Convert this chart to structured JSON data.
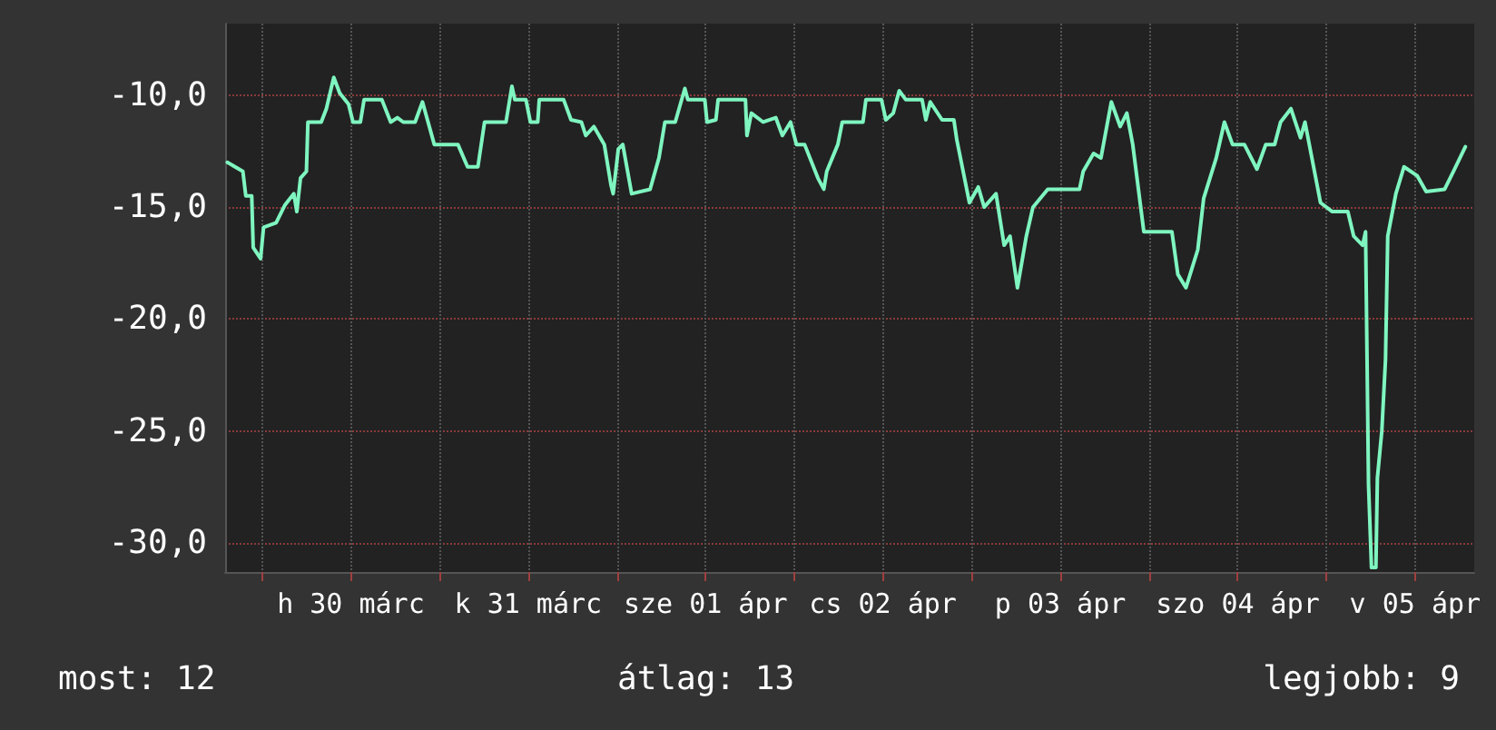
{
  "chart_data": {
    "type": "line",
    "color": "#7ff5c0",
    "marker": "none",
    "line_style": "solid",
    "grid": true,
    "xlim": [
      "--03-29T19:00",
      "--04-05T20:00"
    ],
    "ylim": [
      -31.3,
      -6.8
    ],
    "xticks": [
      {
        "value": "--03-30T00:00",
        "label": null
      },
      {
        "value": "--03-30T12:00",
        "label": "h 30 márc"
      },
      {
        "value": "--03-31T00:00",
        "label": null
      },
      {
        "value": "--03-31T12:00",
        "label": "k 31 márc"
      },
      {
        "value": "--04-01T00:00",
        "label": null
      },
      {
        "value": "--04-01T12:00",
        "label": "sze 01 ápr"
      },
      {
        "value": "--04-02T00:00",
        "label": null
      },
      {
        "value": "--04-02T12:00",
        "label": "cs 02 ápr"
      },
      {
        "value": "--04-03T00:00",
        "label": null
      },
      {
        "value": "--04-03T12:00",
        "label": "p 03 ápr"
      },
      {
        "value": "--04-04T00:00",
        "label": null
      },
      {
        "value": "--04-04T12:00",
        "label": "szo 04 ápr"
      },
      {
        "value": "--04-05T00:00",
        "label": null
      },
      {
        "value": "--04-05T12:00",
        "label": "v 05 ápr"
      }
    ],
    "yticks": [
      {
        "value": -30,
        "label": "-30,0"
      },
      {
        "value": -25,
        "label": "-25,0"
      },
      {
        "value": -20,
        "label": "-20,0"
      },
      {
        "value": -15,
        "label": "-15,0"
      },
      {
        "value": -10,
        "label": "-10,0"
      }
    ],
    "x": [
      "--03-29T19:18",
      "--03-29T21:24",
      "--03-29T21:48",
      "--03-29T22:36",
      "--03-29T22:48",
      "--03-29T23:48",
      "--03-30T00:12",
      "--03-30T01:54",
      "--03-30T03:06",
      "--03-30T04:18",
      "--03-30T04:42",
      "--03-30T05:12",
      "--03-30T06:00",
      "--03-30T06:12",
      "--03-30T08:00",
      "--03-30T08:42",
      "--03-30T09:42",
      "--03-30T10:30",
      "--03-30T11:42",
      "--03-30T12:18",
      "--03-30T13:18",
      "--03-30T13:48",
      "--03-30T16:12",
      "--03-30T17:24",
      "--03-30T18:18",
      "--03-30T19:06",
      "--03-30T20:42",
      "--03-30T21:42",
      "--03-30T23:18",
      "--03-31T02:30",
      "--03-31T03:48",
      "--03-31T05:12",
      "--03-31T06:06",
      "--03-31T09:00",
      "--03-31T09:48",
      "--03-31T10:12",
      "--03-31T11:42",
      "--03-31T12:18",
      "--03-31T13:18",
      "--03-31T13:30",
      "--03-31T16:48",
      "--03-31T17:48",
      "--03-31T19:12",
      "--03-31T19:48",
      "--03-31T20:54",
      "--03-31T22:18",
      "--03-31T23:12",
      "--03-31T23:30",
      "--04-01T00:12",
      "--04-01T00:48",
      "--04-01T02:00",
      "--04-01T04:30",
      "--04-01T05:42",
      "--04-01T06:30",
      "--04-01T07:54",
      "--04-01T09:12",
      "--04-01T09:36",
      "--04-01T11:54",
      "--04-01T12:12",
      "--04-01T13:24",
      "--04-01T13:42",
      "--04-01T17:24",
      "--04-01T17:36",
      "--04-01T18:12",
      "--04-01T19:48",
      "--04-01T21:30",
      "--04-01T22:24",
      "--04-01T23:30",
      "--04-02T00:18",
      "--04-02T01:24",
      "--04-02T03:12",
      "--04-02T04:00",
      "--04-02T04:24",
      "--04-02T05:54",
      "--04-02T06:30",
      "--04-02T08:06",
      "--04-02T09:18",
      "--04-02T09:42",
      "--04-02T11:48",
      "--04-02T12:24",
      "--04-02T13:24",
      "--04-02T14:12",
      "--04-02T15:06",
      "--04-02T17:18",
      "--04-02T17:48",
      "--04-02T18:24",
      "--04-02T20:00",
      "--04-02T21:36",
      "--04-02T22:00",
      "--04-02T23:42",
      "--04-03T00:54",
      "--04-03T01:42",
      "--04-03T03:18",
      "--04-03T04:24",
      "--04-03T05:12",
      "--04-03T06:12",
      "--04-03T07:24",
      "--04-03T08:18",
      "--04-03T10:18",
      "--04-03T14:36",
      "--04-03T15:06",
      "--04-03T16:30",
      "--04-03T17:30",
      "--04-03T18:54",
      "--04-03T20:06",
      "--04-03T21:00",
      "--04-03T21:48",
      "--04-03T23:18",
      "--04-04T03:06",
      "--04-04T03:54",
      "--04-04T05:00",
      "--04-04T06:36",
      "--04-04T07:24",
      "--04-04T09:06",
      "--04-04T10:12",
      "--04-04T11:18",
      "--04-04T12:54",
      "--04-04T14:36",
      "--04-04T15:48",
      "--04-04T17:00",
      "--04-04T17:48",
      "--04-04T19:12",
      "--04-04T20:30",
      "--04-04T21:06",
      "--04-04T23:12",
      "--04-05T00:48",
      "--04-05T02:54",
      "--04-05T03:42",
      "--04-05T04:54",
      "--04-05T05:18",
      "--04-05T05:42",
      "--04-05T06:06",
      "--04-05T06:42",
      "--04-05T06:54",
      "--04-05T07:30",
      "--04-05T08:00",
      "--04-05T08:18",
      "--04-05T09:24",
      "--04-05T10:30",
      "--04-05T12:18",
      "--04-05T13:30",
      "--04-05T16:00",
      "--04-05T17:12",
      "--04-05T18:48"
    ],
    "values": [
      -13.0,
      -13.4,
      -14.5,
      -14.5,
      -16.8,
      -17.3,
      -15.9,
      -15.7,
      -14.9,
      -14.4,
      -15.2,
      -13.7,
      -13.4,
      -11.2,
      -11.2,
      -10.6,
      -9.2,
      -9.9,
      -10.4,
      -11.2,
      -11.2,
      -10.2,
      -10.2,
      -11.2,
      -11.0,
      -11.2,
      -11.2,
      -10.3,
      -12.2,
      -12.2,
      -13.2,
      -13.2,
      -11.2,
      -11.2,
      -9.6,
      -10.2,
      -10.2,
      -11.2,
      -11.2,
      -10.2,
      -10.2,
      -11.1,
      -11.2,
      -11.8,
      -11.4,
      -12.2,
      -14.0,
      -14.4,
      -12.4,
      -12.2,
      -14.4,
      -14.2,
      -12.8,
      -11.2,
      -11.2,
      -9.7,
      -10.2,
      -10.2,
      -11.2,
      -11.1,
      -10.2,
      -10.2,
      -11.8,
      -10.8,
      -11.2,
      -11.0,
      -11.8,
      -11.2,
      -12.2,
      -12.2,
      -13.7,
      -14.2,
      -13.4,
      -12.2,
      -11.2,
      -11.2,
      -11.2,
      -10.2,
      -10.2,
      -11.1,
      -10.8,
      -9.8,
      -10.2,
      -10.2,
      -11.1,
      -10.3,
      -11.1,
      -11.1,
      -12.0,
      -14.8,
      -14.1,
      -15.0,
      -14.4,
      -16.7,
      -16.3,
      -18.6,
      -16.3,
      -15.0,
      -14.2,
      -14.2,
      -13.4,
      -12.6,
      -12.8,
      -10.3,
      -11.4,
      -10.8,
      -12.2,
      -16.1,
      -16.1,
      -18.0,
      -18.6,
      -16.9,
      -14.6,
      -12.8,
      -11.2,
      -12.2,
      -12.2,
      -13.3,
      -12.2,
      -12.2,
      -11.2,
      -10.6,
      -11.9,
      -11.2,
      -14.8,
      -15.2,
      -15.2,
      -16.3,
      -16.7,
      -16.1,
      -27.4,
      -31.1,
      -31.1,
      -27.1,
      -25.0,
      -21.8,
      -16.3,
      -14.4,
      -13.2,
      -13.6,
      -14.3,
      -14.2,
      -13.4,
      -12.3
    ],
    "annotations": [
      "most: 12",
      "átlag: 13",
      "legjobb: 9"
    ]
  }
}
